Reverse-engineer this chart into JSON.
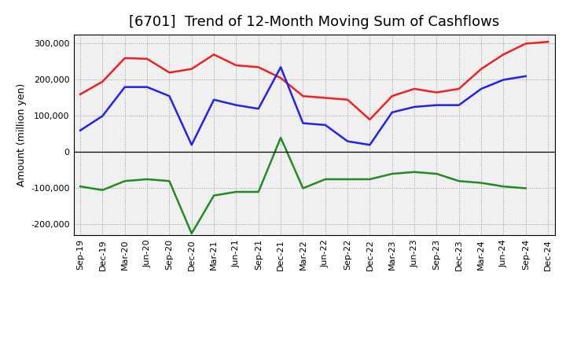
{
  "title": "[6701]  Trend of 12-Month Moving Sum of Cashflows",
  "ylabel": "Amount (million yen)",
  "x_labels": [
    "Sep-19",
    "Dec-19",
    "Mar-20",
    "Jun-20",
    "Sep-20",
    "Dec-20",
    "Mar-21",
    "Jun-21",
    "Sep-21",
    "Dec-21",
    "Mar-22",
    "Jun-22",
    "Sep-22",
    "Dec-22",
    "Mar-23",
    "Jun-23",
    "Sep-23",
    "Dec-23",
    "Mar-24",
    "Jun-24",
    "Sep-24",
    "Dec-24"
  ],
  "operating_cashflow": [
    160000,
    195000,
    260000,
    258000,
    220000,
    230000,
    270000,
    240000,
    235000,
    205000,
    155000,
    150000,
    145000,
    90000,
    155000,
    175000,
    165000,
    175000,
    230000,
    270000,
    300000,
    305000
  ],
  "investing_cashflow": [
    -95000,
    -105000,
    -80000,
    -75000,
    -80000,
    -225000,
    -120000,
    -110000,
    -110000,
    40000,
    -100000,
    -75000,
    -75000,
    -75000,
    -60000,
    -55000,
    -60000,
    -80000,
    -85000,
    -95000,
    -100000,
    null
  ],
  "free_cashflow": [
    60000,
    100000,
    180000,
    180000,
    155000,
    20000,
    145000,
    130000,
    120000,
    235000,
    80000,
    75000,
    30000,
    20000,
    110000,
    125000,
    130000,
    130000,
    175000,
    200000,
    210000,
    null
  ],
  "ylim": [
    -230000,
    325000
  ],
  "yticks": [
    -200000,
    -100000,
    0,
    100000,
    200000,
    300000
  ],
  "operating_color": "#ee2222",
  "investing_color": "#228B22",
  "free_color": "#2222ee",
  "background_color": "#f0f0f0",
  "grid_color": "#999999",
  "linewidth": 1.8,
  "title_fontsize": 13,
  "ylabel_fontsize": 9,
  "tick_fontsize": 8,
  "legend_fontsize": 9,
  "legend_color": "#555555"
}
